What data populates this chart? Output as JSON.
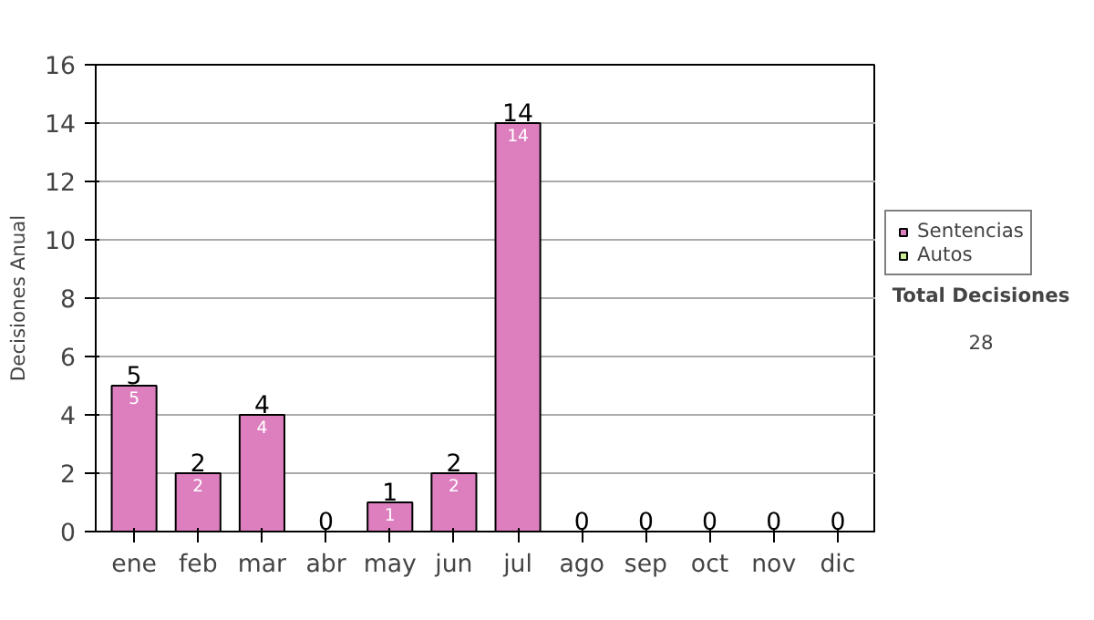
{
  "chart_data": {
    "type": "bar",
    "stacked": true,
    "ylabel": "Decisiones Anual",
    "categories": [
      "ene",
      "feb",
      "mar",
      "abr",
      "may",
      "jun",
      "jul",
      "ago",
      "sep",
      "oct",
      "nov",
      "dic"
    ],
    "series": [
      {
        "name": "Sentencias",
        "color": "#dd7fbf",
        "values": [
          5,
          2,
          4,
          0,
          1,
          2,
          14,
          0,
          0,
          0,
          0,
          0
        ],
        "value_labels": [
          "5",
          "2",
          "4",
          null,
          "1",
          "2",
          "14",
          null,
          null,
          null,
          null,
          null
        ]
      },
      {
        "name": "Autos",
        "color": "#ccee99",
        "values": [
          0,
          0,
          0,
          0,
          0,
          0,
          0,
          0,
          0,
          0,
          0,
          0
        ]
      }
    ],
    "totals": [
      "5",
      "2",
      "4",
      "0",
      "1",
      "2",
      "14",
      "0",
      "0",
      "0",
      "0",
      "0"
    ],
    "ylim": [
      0,
      16
    ],
    "yticks": [
      0,
      2,
      4,
      6,
      8,
      10,
      12,
      14,
      16
    ],
    "grid": "y",
    "legend": "right",
    "annotations": [
      "Total Decisiones",
      "28"
    ]
  }
}
